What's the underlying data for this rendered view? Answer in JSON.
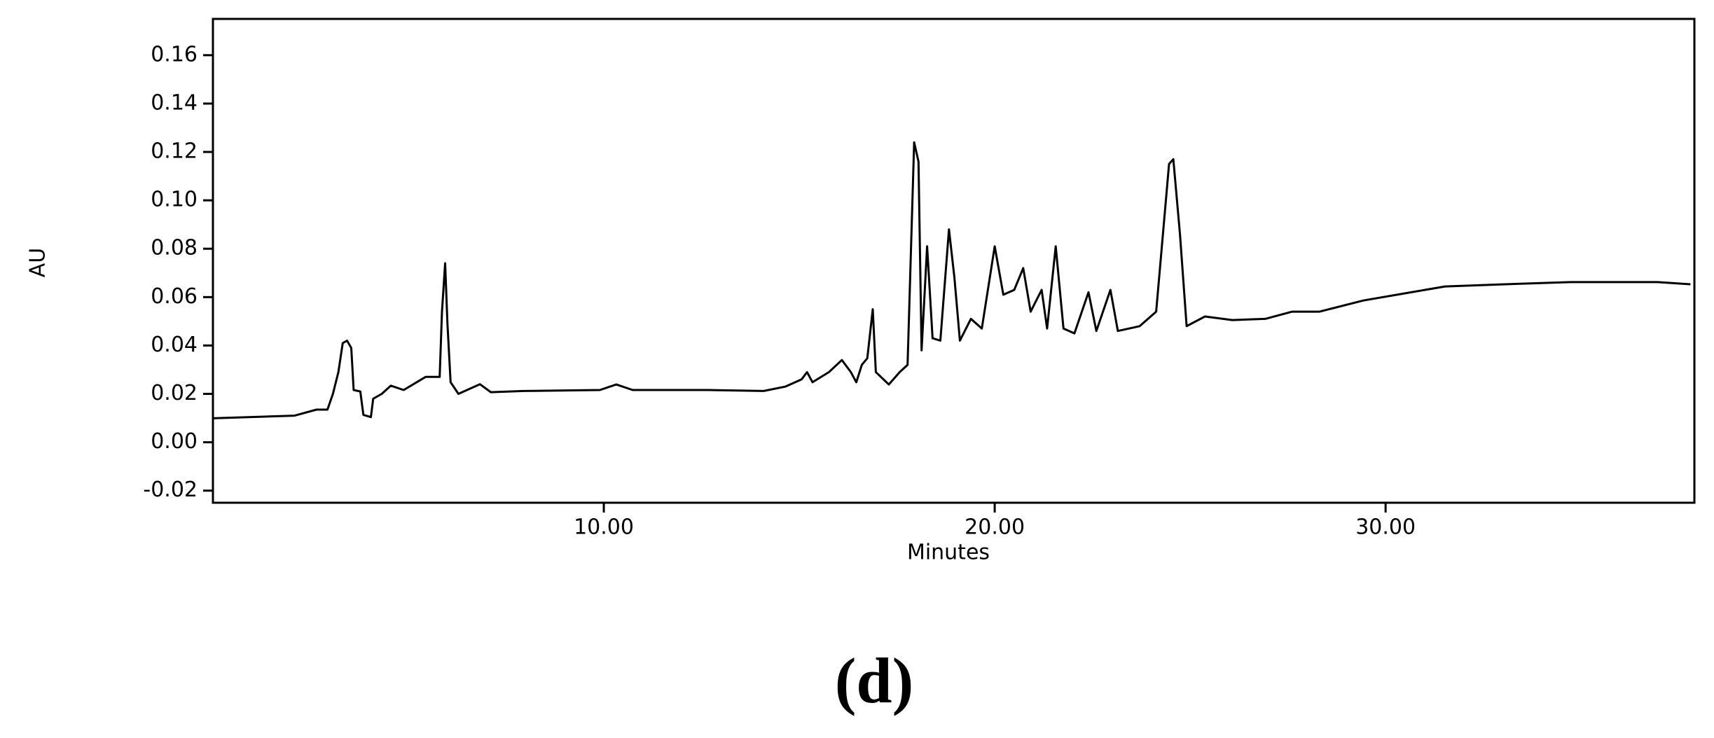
{
  "chart_data": {
    "type": "line",
    "caption": "(d)",
    "xlabel": "Minutes",
    "ylabel": "AU",
    "color": "#000000",
    "x": [
      0,
      2.09,
      2.65,
      2.93,
      3.07,
      3.21,
      3.32,
      3.43,
      3.54,
      3.6,
      3.77,
      3.85,
      4.04,
      4.1,
      4.32,
      4.55,
      4.88,
      5.44,
      5.8,
      5.86,
      5.94,
      6.0,
      6.08,
      6.28,
      6.83,
      7.11,
      7.95,
      9.9,
      10.32,
      10.74,
      12.69,
      14.09,
      14.64,
      15.06,
      15.2,
      15.34,
      15.76,
      16.09,
      16.32,
      16.46,
      16.6,
      16.74,
      16.88,
      16.96,
      17.29,
      17.57,
      17.77,
      17.94,
      18.05,
      18.13,
      18.27,
      18.41,
      18.61,
      18.83,
      18.97,
      19.11,
      19.39,
      19.67,
      20.0,
      20.22,
      20.5,
      20.73,
      20.92,
      21.2,
      21.34,
      21.56,
      21.76,
      22.04,
      22.4,
      22.6,
      22.96,
      23.15,
      23.71,
      24.13,
      24.46,
      24.57,
      24.74,
      24.91,
      25.38,
      26.08,
      26.92,
      27.61,
      28.31,
      29.43,
      30.54,
      31.52,
      33.05,
      34.73,
      36.96,
      37.8
    ],
    "values": [
      0.0099,
      0.011,
      0.0135,
      0.0135,
      0.02,
      0.029,
      0.041,
      0.042,
      0.039,
      0.0216,
      0.021,
      0.0113,
      0.0104,
      0.018,
      0.02,
      0.0234,
      0.0216,
      0.027,
      0.027,
      0.054,
      0.074,
      0.049,
      0.0248,
      0.02,
      0.024,
      0.0207,
      0.0212,
      0.0216,
      0.0239,
      0.0216,
      0.0216,
      0.0212,
      0.023,
      0.026,
      0.029,
      0.0248,
      0.029,
      0.034,
      0.029,
      0.0248,
      0.032,
      0.0347,
      0.055,
      0.029,
      0.0239,
      0.029,
      0.032,
      0.124,
      0.116,
      0.038,
      0.081,
      0.043,
      0.042,
      0.088,
      0.068,
      0.042,
      0.051,
      0.047,
      0.081,
      0.061,
      0.063,
      0.072,
      0.054,
      0.063,
      0.047,
      0.081,
      0.047,
      0.045,
      0.062,
      0.046,
      0.063,
      0.046,
      0.048,
      0.054,
      0.115,
      0.117,
      0.086,
      0.048,
      0.052,
      0.0505,
      0.051,
      0.054,
      0.054,
      0.0586,
      0.0617,
      0.0644,
      0.0653,
      0.0662,
      0.0662,
      0.0653
    ],
    "xlim": [
      0,
      37.9
    ],
    "ylim": [
      -0.025,
      0.175
    ],
    "xticks": [
      {
        "value": 10,
        "label": "10.00"
      },
      {
        "value": 20,
        "label": "20.00"
      },
      {
        "value": 30,
        "label": "30.00"
      }
    ],
    "yticks": [
      -0.02,
      {
        "value": 0,
        "label": "0.00"
      },
      0.02,
      0.04,
      0.06,
      0.08,
      {
        "value": 0.1,
        "label": "0.10"
      },
      0.12,
      0.14,
      0.16
    ]
  }
}
